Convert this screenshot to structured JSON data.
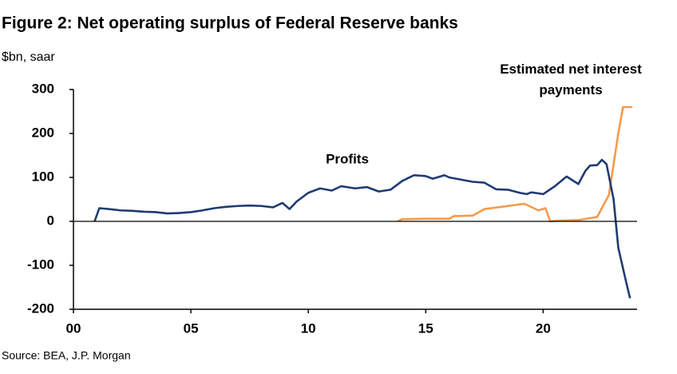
{
  "chart_data": {
    "type": "line",
    "title": "Figure 2: Net operating surplus of Federal Reserve banks",
    "subtitle": "$bn, saar",
    "source": "Source: BEA, J.P. Morgan",
    "xlim": [
      0,
      24
    ],
    "xticks": [
      {
        "value": 0,
        "label": "00"
      },
      {
        "value": 5,
        "label": "05"
      },
      10,
      15,
      20
    ],
    "ylim": [
      -200,
      300
    ],
    "yticks": [
      -200,
      -100,
      0,
      100,
      200,
      300
    ],
    "series": [
      {
        "name": "Profits",
        "color": "#1f3b73",
        "x": [
          0.9,
          1.1,
          1.5,
          2,
          2.5,
          3,
          3.5,
          4,
          4.5,
          5,
          5.5,
          6,
          6.5,
          7,
          7.5,
          8,
          8.5,
          8.9,
          9.2,
          9.5,
          10,
          10.5,
          11,
          11.4,
          12,
          12.5,
          13,
          13.5,
          14,
          14.5,
          15,
          15.3,
          15.8,
          16,
          17,
          17.5,
          18,
          18.5,
          19,
          19.3,
          19.5,
          20,
          20.5,
          21,
          21.5,
          21.8,
          22,
          22.3,
          22.5,
          22.7,
          23,
          23.2,
          23.5,
          23.7
        ],
        "values": [
          0,
          30,
          28,
          25,
          24,
          22,
          21,
          18,
          19,
          21,
          25,
          30,
          33,
          35,
          36,
          35,
          32,
          42,
          28,
          45,
          65,
          75,
          70,
          80,
          75,
          78,
          68,
          72,
          92,
          105,
          103,
          97,
          105,
          100,
          90,
          88,
          73,
          72,
          65,
          62,
          66,
          62,
          80,
          102,
          85,
          115,
          127,
          128,
          140,
          130,
          50,
          -60,
          -130,
          -175
        ]
      },
      {
        "name": "Estimated net interest payments",
        "color": "#f79a4a",
        "x": [
          13.8,
          14,
          15,
          16,
          16.2,
          17,
          17.5,
          18.5,
          19.2,
          19.8,
          20.1,
          20.3,
          20.5,
          21.5,
          22.3,
          22.8,
          23.2,
          23.4,
          23.8
        ],
        "values": [
          0,
          5,
          6,
          6,
          12,
          13,
          28,
          35,
          40,
          25,
          30,
          0,
          1,
          3,
          10,
          60,
          200,
          260,
          260
        ]
      }
    ]
  }
}
